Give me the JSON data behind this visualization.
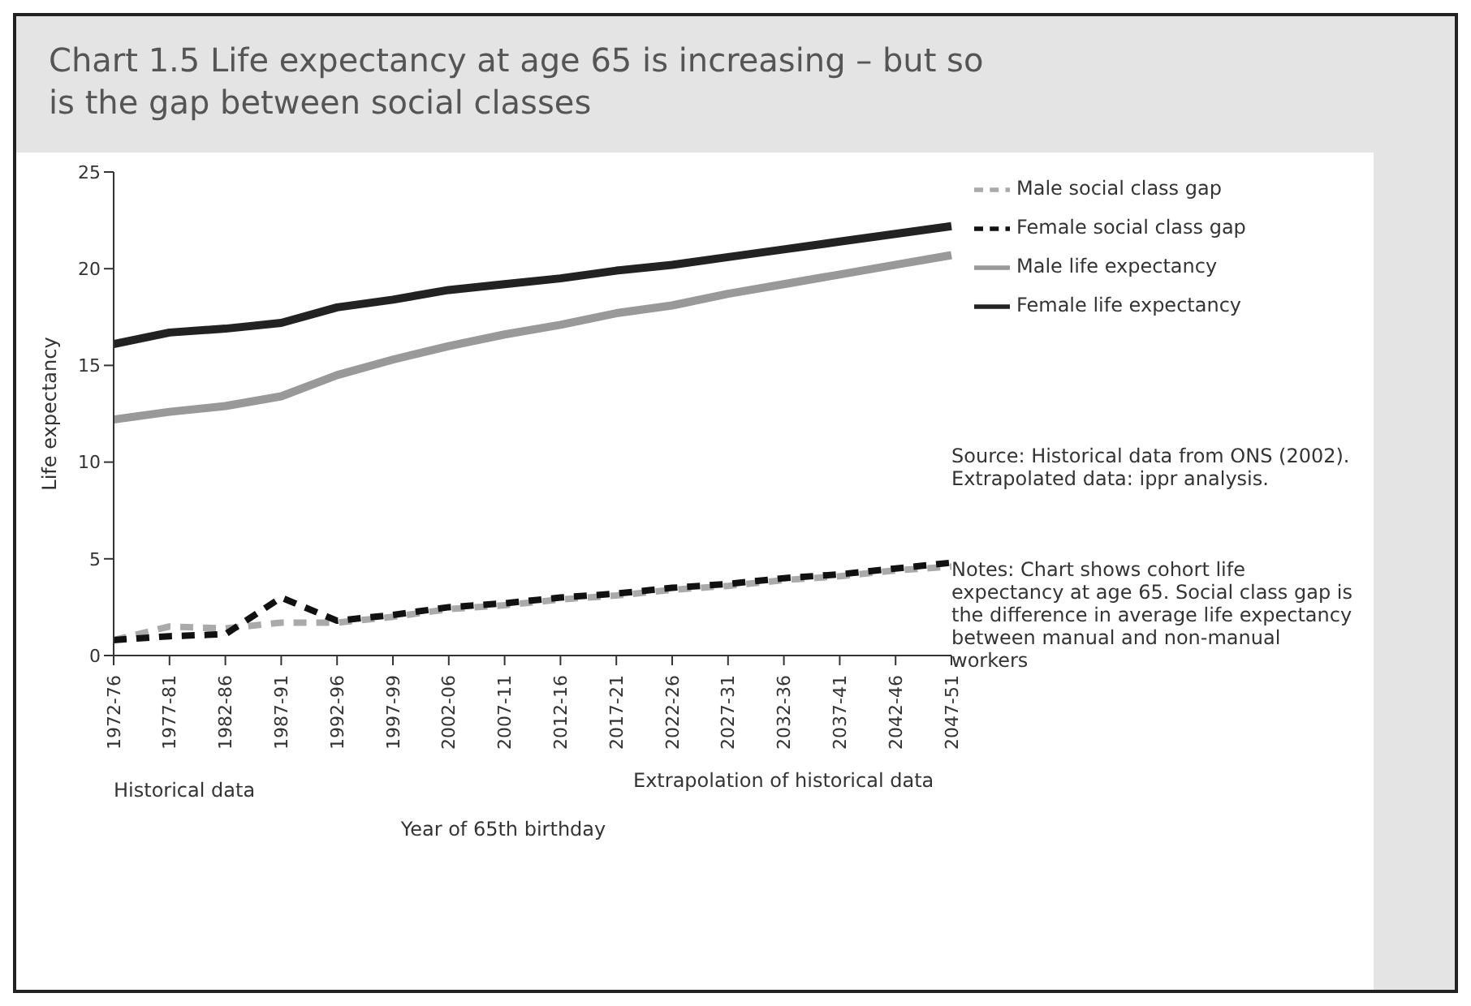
{
  "chart_data": {
    "type": "line",
    "title": "Chart 1.5 Life expectancy at age 65 is increasing – but so is the gap between social classes",
    "xlabel": "Year of 65th birthday",
    "ylabel": "Life expectancy",
    "categories": [
      "1972-76",
      "1977-81",
      "1982-86",
      "1987-91",
      "1992-96",
      "1997-99",
      "2002-06",
      "2007-11",
      "2012-16",
      "2017-21",
      "2022-26",
      "2027-31",
      "2032-36",
      "2037-41",
      "2042-46",
      "2047-51"
    ],
    "series": [
      {
        "name": "Male social class gap",
        "color": "#aaaaaa",
        "line_style": "dashed",
        "values": [
          0.8,
          1.5,
          1.4,
          1.7,
          1.7,
          2.0,
          2.4,
          2.6,
          2.9,
          3.1,
          3.4,
          3.6,
          3.9,
          4.1,
          4.4,
          4.6
        ]
      },
      {
        "name": "Female social class gap",
        "color": "#111111",
        "line_style": "dashed",
        "values": [
          0.8,
          1.0,
          1.1,
          3.0,
          1.8,
          2.1,
          2.5,
          2.7,
          3.0,
          3.2,
          3.5,
          3.7,
          4.0,
          4.2,
          4.5,
          4.8
        ]
      },
      {
        "name": "Male life expectancy",
        "color": "#999999",
        "line_style": "solid",
        "values": [
          12.2,
          12.6,
          12.9,
          13.4,
          14.5,
          15.3,
          16.0,
          16.6,
          17.1,
          17.7,
          18.1,
          18.7,
          19.2,
          19.7,
          20.2,
          20.7
        ]
      },
      {
        "name": "Female life expectancy",
        "color": "#222222",
        "line_style": "solid",
        "values": [
          16.1,
          16.7,
          16.9,
          17.2,
          18.0,
          18.4,
          18.9,
          19.2,
          19.5,
          19.9,
          20.2,
          20.6,
          21.0,
          21.4,
          21.8,
          22.2
        ]
      }
    ],
    "ylim": [
      0,
      25
    ],
    "yticks": [
      0,
      5,
      10,
      15,
      20,
      25
    ],
    "grid": false,
    "legend": "top right",
    "marker": "none",
    "annotations": [
      "Historical data",
      "Extrapolation of historical data",
      "Source: Historical data from ONS (2002). Extrapolated data: ippr analysis.",
      "Notes: Chart shows cohort life expectancy at age 65. Social class gap is the difference in average life expectancy between manual and non-manual workers"
    ]
  }
}
